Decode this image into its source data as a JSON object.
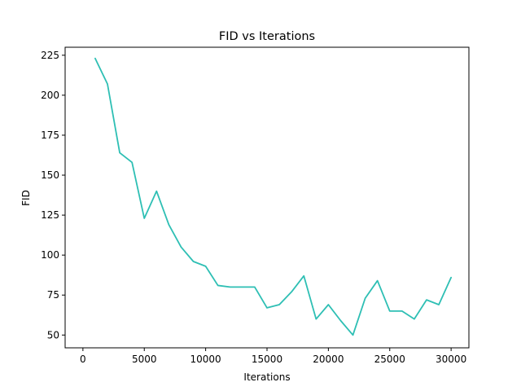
{
  "chart_data": {
    "type": "line",
    "title": "FID vs Iterations",
    "xlabel": "Iterations",
    "ylabel": "FID",
    "xlim": [
      -1450,
      31450
    ],
    "ylim": [
      42,
      230
    ],
    "xticks": [
      0,
      5000,
      10000,
      15000,
      20000,
      25000,
      30000
    ],
    "yticks": [
      50,
      75,
      100,
      125,
      150,
      175,
      200,
      225
    ],
    "grid": false,
    "colors": {
      "series": "#2ebfb4"
    },
    "series": [
      {
        "x": [
          1000,
          2000,
          3000,
          4000,
          5000,
          6000,
          7000,
          8000,
          9000,
          10000,
          11000,
          12000,
          13000,
          14000,
          15000,
          16000,
          17000,
          18000,
          19000,
          20000,
          21000,
          22000,
          23000,
          24000,
          25000,
          26000,
          27000,
          28000,
          29000,
          30000
        ],
        "values": [
          223,
          207,
          164,
          158,
          123,
          140,
          119,
          105,
          96,
          93,
          81,
          80,
          80,
          80,
          67,
          69,
          77,
          87,
          60,
          69,
          59,
          50,
          73,
          84,
          65,
          65,
          60,
          72,
          69,
          86
        ]
      }
    ]
  }
}
